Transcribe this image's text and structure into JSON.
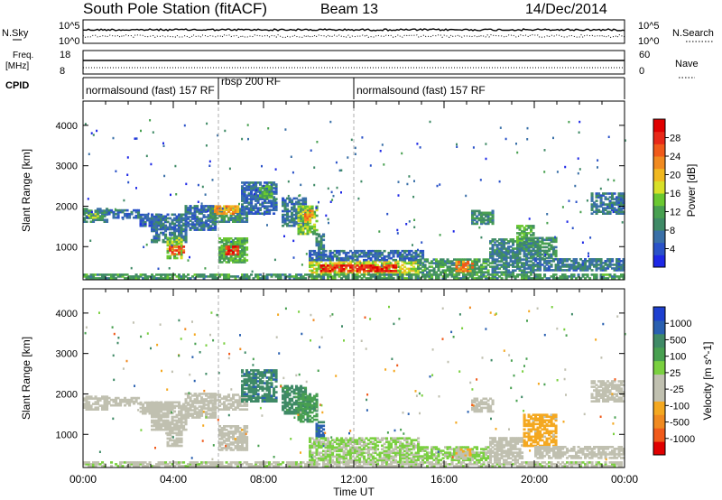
{
  "header": {
    "station": "South Pole Station (fitACF)",
    "beam": "Beam 13",
    "date": "14/Dec/2014"
  },
  "upper_panels": {
    "nsky_label": "N.Sky",
    "nsky_ticks": [
      "10^5",
      "10^0"
    ],
    "nsearch_label": "N.Search",
    "nsearch_ticks": [
      "10^5",
      "10^0"
    ],
    "freq_label": "Freq.",
    "freq_unit": "[MHz]",
    "freq_ticks": [
      "18",
      "8"
    ],
    "nave_label": "Nave",
    "nave_ticks": [
      "60",
      "0"
    ],
    "cpid_label": "CPID"
  },
  "cpid_segments": [
    {
      "label": "normalsound (fast) 157 RF",
      "start_h": 0,
      "end_h": 6
    },
    {
      "label": "rbsp 200 RF",
      "start_h": 6,
      "end_h": 12
    },
    {
      "label": "normalsound (fast) 157 RF",
      "start_h": 12,
      "end_h": 24
    }
  ],
  "chart_data": [
    {
      "type": "heatmap",
      "title": "",
      "xlabel": "Time UT",
      "ylabel": "Slant Range [km]",
      "xlim": [
        0,
        24
      ],
      "ylim": [
        180,
        4600
      ],
      "x_ticks": [
        "00:00",
        "04:00",
        "08:00",
        "12:00",
        "16:00",
        "20:00",
        "00:00"
      ],
      "y_ticks": [
        "1000",
        "2000",
        "3000",
        "4000"
      ],
      "colorbar": {
        "label": "Power [dB]",
        "ticks": [
          "28",
          "24",
          "20",
          "16",
          "12",
          "8",
          "4"
        ],
        "range": [
          0,
          30
        ],
        "colors": [
          "#1e28e6",
          "#2a52c8",
          "#3a70a8",
          "#3f8a66",
          "#48a050",
          "#6ac830",
          "#d8e028",
          "#f0b820",
          "#f08a20",
          "#f05a1a",
          "#e82818",
          "#e00000"
        ]
      },
      "regions": [
        {
          "t": [
            0.0,
            1.0
          ],
          "r": [
            1600,
            1950
          ],
          "v": 8
        },
        {
          "t": [
            0.2,
            0.8
          ],
          "r": [
            1700,
            1800
          ],
          "v": 14
        },
        {
          "t": [
            1.0,
            2.5
          ],
          "r": [
            1700,
            1900
          ],
          "v": 6
        },
        {
          "t": [
            2.5,
            3.5
          ],
          "r": [
            1500,
            1800
          ],
          "v": 5
        },
        {
          "t": [
            3.0,
            4.5
          ],
          "r": [
            1100,
            1800
          ],
          "v": 7
        },
        {
          "t": [
            3.7,
            4.3
          ],
          "r": [
            700,
            1200
          ],
          "v": 14
        },
        {
          "t": [
            3.8,
            4.4
          ],
          "r": [
            800,
            1000
          ],
          "v": 24
        },
        {
          "t": [
            4.5,
            5.8
          ],
          "r": [
            1400,
            2000
          ],
          "v": 6
        },
        {
          "t": [
            5.5,
            7.2
          ],
          "r": [
            1600,
            2000
          ],
          "v": 9
        },
        {
          "t": [
            5.8,
            6.8
          ],
          "r": [
            1800,
            2000
          ],
          "v": 20
        },
        {
          "t": [
            6.0,
            7.2
          ],
          "r": [
            600,
            1200
          ],
          "v": 12
        },
        {
          "t": [
            6.3,
            6.8
          ],
          "r": [
            800,
            1000
          ],
          "v": 26
        },
        {
          "t": [
            7.0,
            8.5
          ],
          "r": [
            1800,
            2600
          ],
          "v": 6
        },
        {
          "t": [
            7.8,
            8.3
          ],
          "r": [
            2200,
            2500
          ],
          "v": 12
        },
        {
          "t": [
            8.8,
            9.8
          ],
          "r": [
            1500,
            2200
          ],
          "v": 7
        },
        {
          "t": [
            9.5,
            10.3
          ],
          "r": [
            1300,
            2000
          ],
          "v": 14
        },
        {
          "t": [
            9.8,
            10.2
          ],
          "r": [
            1600,
            1900
          ],
          "v": 20
        },
        {
          "t": [
            10.3,
            10.7
          ],
          "r": [
            700,
            1300
          ],
          "v": 8
        },
        {
          "t": [
            10.0,
            14.8
          ],
          "r": [
            300,
            650
          ],
          "v": 16
        },
        {
          "t": [
            10.5,
            13.8
          ],
          "r": [
            380,
            560
          ],
          "v": 26
        },
        {
          "t": [
            10.0,
            15.0
          ],
          "r": [
            650,
            900
          ],
          "v": 6
        },
        {
          "t": [
            14.8,
            18.0
          ],
          "r": [
            350,
            700
          ],
          "v": 10
        },
        {
          "t": [
            16.5,
            17.3
          ],
          "r": [
            380,
            620
          ],
          "v": 22
        },
        {
          "t": [
            18.0,
            20.0
          ],
          "r": [
            350,
            1200
          ],
          "v": 8
        },
        {
          "t": [
            19.2,
            20.0
          ],
          "r": [
            1000,
            1500
          ],
          "v": 12
        },
        {
          "t": [
            19.5,
            21.0
          ],
          "r": [
            700,
            1200
          ],
          "v": 9
        },
        {
          "t": [
            20.0,
            24.0
          ],
          "r": [
            400,
            700
          ],
          "v": 7
        },
        {
          "t": [
            17.2,
            18.2
          ],
          "r": [
            1550,
            1900
          ],
          "v": 9
        },
        {
          "t": [
            22.5,
            24.0
          ],
          "r": [
            1800,
            2300
          ],
          "v": 7
        },
        {
          "t": [
            0.0,
            24.0
          ],
          "r": [
            200,
            320
          ],
          "v": 10
        }
      ]
    },
    {
      "type": "heatmap",
      "title": "",
      "xlabel": "Time UT",
      "ylabel": "Slant Range [km]",
      "xlim": [
        0,
        24
      ],
      "ylim": [
        180,
        4600
      ],
      "x_ticks": [
        "00:00",
        "04:00",
        "08:00",
        "12:00",
        "16:00",
        "20:00",
        "00:00"
      ],
      "y_ticks": [
        "1000",
        "2000",
        "3000",
        "4000"
      ],
      "colorbar": {
        "label": "Velocity [m s^-1]",
        "ticks": [
          "1000",
          "500",
          "100",
          "25",
          "-25",
          "-100",
          "-500",
          "-1000"
        ],
        "range": [
          -1200,
          1200
        ],
        "colors": [
          "#e00000",
          "#f05a1a",
          "#f08a20",
          "#f4a820",
          "#c0c0b0",
          "#c0c0b0",
          "#7ad040",
          "#48a050",
          "#3f8a66",
          "#2a60b0",
          "#1e40d0"
        ]
      },
      "regions": [
        {
          "t": [
            0.0,
            1.0
          ],
          "r": [
            1600,
            1950
          ],
          "v": -60
        },
        {
          "t": [
            1.0,
            2.5
          ],
          "r": [
            1700,
            1900
          ],
          "v": 0
        },
        {
          "t": [
            2.5,
            3.5
          ],
          "r": [
            1500,
            1800
          ],
          "v": -150
        },
        {
          "t": [
            3.0,
            4.5
          ],
          "r": [
            1100,
            1800
          ],
          "v": -200
        },
        {
          "t": [
            3.7,
            4.3
          ],
          "r": [
            700,
            1200
          ],
          "v": -120
        },
        {
          "t": [
            4.5,
            5.8
          ],
          "r": [
            1400,
            2000
          ],
          "v": -200
        },
        {
          "t": [
            5.5,
            7.2
          ],
          "r": [
            1600,
            2000
          ],
          "v": 0
        },
        {
          "t": [
            6.0,
            7.2
          ],
          "r": [
            600,
            1200
          ],
          "v": -250
        },
        {
          "t": [
            7.0,
            8.5
          ],
          "r": [
            1800,
            2600
          ],
          "v": 700
        },
        {
          "t": [
            8.8,
            9.8
          ],
          "r": [
            1500,
            2200
          ],
          "v": 600
        },
        {
          "t": [
            9.5,
            10.3
          ],
          "r": [
            1300,
            2000
          ],
          "v": 500
        },
        {
          "t": [
            10.3,
            10.7
          ],
          "r": [
            700,
            1300
          ],
          "v": 800
        },
        {
          "t": [
            10.0,
            14.8
          ],
          "r": [
            300,
            900
          ],
          "v": 120
        },
        {
          "t": [
            14.8,
            18.0
          ],
          "r": [
            350,
            700
          ],
          "v": 150
        },
        {
          "t": [
            16.5,
            17.3
          ],
          "r": [
            380,
            620
          ],
          "v": -300
        },
        {
          "t": [
            18.0,
            19.5
          ],
          "r": [
            350,
            900
          ],
          "v": -100
        },
        {
          "t": [
            19.5,
            21.0
          ],
          "r": [
            700,
            1500
          ],
          "v": -400
        },
        {
          "t": [
            20.0,
            24.0
          ],
          "r": [
            400,
            700
          ],
          "v": -200
        },
        {
          "t": [
            17.2,
            18.2
          ],
          "r": [
            1550,
            1900
          ],
          "v": 0
        },
        {
          "t": [
            22.5,
            24.0
          ],
          "r": [
            1800,
            2300
          ],
          "v": 0
        },
        {
          "t": [
            0.0,
            24.0
          ],
          "r": [
            200,
            320
          ],
          "v": 60
        }
      ]
    }
  ]
}
